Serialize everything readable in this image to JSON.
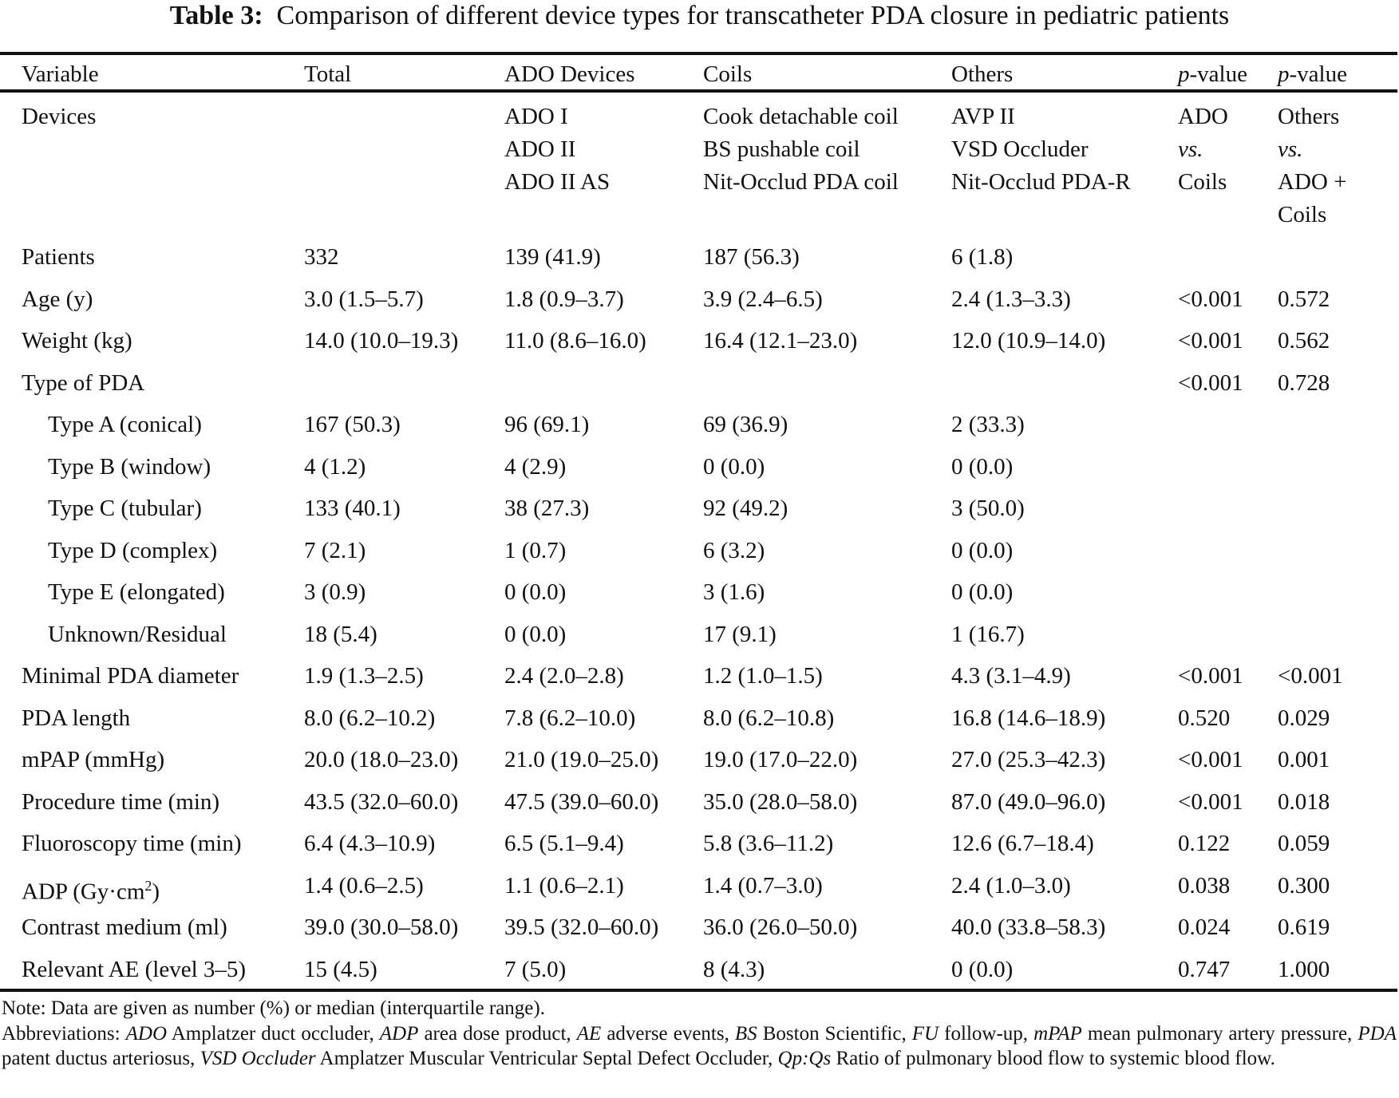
{
  "title": {
    "label": "Table 3:",
    "text": "Comparison of different device types for transcatheter PDA closure in pediatric patients"
  },
  "columns": [
    {
      "text": "Variable"
    },
    {
      "text": "Total"
    },
    {
      "text": "ADO Devices"
    },
    {
      "text": "Coils"
    },
    {
      "text": "Others"
    },
    {
      "italic": "p",
      "text": "-value"
    },
    {
      "italic": "p",
      "text": "-value"
    }
  ],
  "devices_row": {
    "label": "Devices",
    "ado": [
      "ADO I",
      "ADO II",
      "ADO II AS"
    ],
    "coils": [
      "Cook detachable coil",
      "BS pushable coil",
      "Nit-Occlud PDA coil"
    ],
    "others": [
      "AVP II",
      "VSD Occluder",
      "Nit-Occlud PDA-R"
    ],
    "p1": [
      "ADO",
      "vs.",
      "Coils"
    ],
    "p2": [
      "Others",
      "vs.",
      "ADO +",
      "Coils"
    ]
  },
  "rows": [
    {
      "variable": "Patients",
      "indent": false,
      "cells": [
        "332",
        "139 (41.9)",
        "187 (56.3)",
        "6 (1.8)",
        "",
        ""
      ]
    },
    {
      "variable": "Age (y)",
      "indent": false,
      "cells": [
        "3.0 (1.5–5.7)",
        "1.8 (0.9–3.7)",
        "3.9 (2.4–6.5)",
        "2.4 (1.3–3.3)",
        "<0.001",
        "0.572"
      ]
    },
    {
      "variable": "Weight (kg)",
      "indent": false,
      "cells": [
        "14.0 (10.0–19.3)",
        "11.0 (8.6–16.0)",
        "16.4 (12.1–23.0)",
        "12.0 (10.9–14.0)",
        "<0.001",
        "0.562"
      ]
    },
    {
      "variable": "Type of PDA",
      "indent": false,
      "cells": [
        "",
        "",
        "",
        "",
        "<0.001",
        "0.728"
      ]
    },
    {
      "variable": "Type A (conical)",
      "indent": true,
      "cells": [
        "167 (50.3)",
        "96 (69.1)",
        "69 (36.9)",
        "2 (33.3)",
        "",
        ""
      ]
    },
    {
      "variable": "Type B (window)",
      "indent": true,
      "cells": [
        "4 (1.2)",
        "4 (2.9)",
        "0 (0.0)",
        "0 (0.0)",
        "",
        ""
      ]
    },
    {
      "variable": "Type C (tubular)",
      "indent": true,
      "cells": [
        "133 (40.1)",
        "38 (27.3)",
        "92 (49.2)",
        "3 (50.0)",
        "",
        ""
      ]
    },
    {
      "variable": "Type D (complex)",
      "indent": true,
      "cells": [
        "7 (2.1)",
        "1 (0.7)",
        "6 (3.2)",
        "0 (0.0)",
        "",
        ""
      ]
    },
    {
      "variable": "Type E (elongated)",
      "indent": true,
      "cells": [
        "3 (0.9)",
        "0 (0.0)",
        "3 (1.6)",
        "0 (0.0)",
        "",
        ""
      ]
    },
    {
      "variable": "Unknown/Residual",
      "indent": true,
      "cells": [
        "18 (5.4)",
        "0 (0.0)",
        "17 (9.1)",
        "1 (16.7)",
        "",
        ""
      ]
    },
    {
      "variable": "Minimal PDA diameter",
      "indent": false,
      "cells": [
        "1.9 (1.3–2.5)",
        "2.4 (2.0–2.8)",
        "1.2 (1.0–1.5)",
        "4.3 (3.1–4.9)",
        "<0.001",
        "<0.001"
      ]
    },
    {
      "variable": "PDA length",
      "indent": false,
      "cells": [
        "8.0 (6.2–10.2)",
        "7.8 (6.2–10.0)",
        "8.0 (6.2–10.8)",
        "16.8 (14.6–18.9)",
        "0.520",
        "0.029"
      ]
    },
    {
      "variable": "mPAP (mmHg)",
      "indent": false,
      "cells": [
        "20.0 (18.0–23.0)",
        "21.0 (19.0–25.0)",
        "19.0 (17.0–22.0)",
        "27.0 (25.3–42.3)",
        "<0.001",
        "0.001"
      ]
    },
    {
      "variable": "Procedure time (min)",
      "indent": false,
      "cells": [
        "43.5 (32.0–60.0)",
        "47.5 (39.0–60.0)",
        "35.0 (28.0–58.0)",
        "87.0 (49.0–96.0)",
        "<0.001",
        "0.018"
      ]
    },
    {
      "variable": "Fluoroscopy time (min)",
      "indent": false,
      "cells": [
        "6.4 (4.3–10.9)",
        "6.5 (5.1–9.4)",
        "5.8 (3.6–11.2)",
        "12.6 (6.7–18.4)",
        "0.122",
        "0.059"
      ]
    },
    {
      "variable": "ADP (Gy·cm",
      "sup": "2",
      "variable_end": ")",
      "indent": false,
      "cells": [
        "1.4 (0.6–2.5)",
        "1.1 (0.6–2.1)",
        "1.4 (0.7–3.0)",
        "2.4 (1.0–3.0)",
        "0.038",
        "0.300"
      ]
    },
    {
      "variable": "Contrast medium (ml)",
      "indent": false,
      "cells": [
        "39.0 (30.0–58.0)",
        "39.5 (32.0–60.0)",
        "36.0 (26.0–50.0)",
        "40.0 (33.8–58.3)",
        "0.024",
        "0.619"
      ]
    },
    {
      "variable": "Relevant AE (level 3–5)",
      "indent": false,
      "cells": [
        "15 (4.5)",
        "7 (5.0)",
        "8 (4.3)",
        "0 (0.0)",
        "0.747",
        "1.000"
      ]
    }
  ],
  "note": "Note: Data are given as number (%) or median (interquartile range).",
  "abbreviations": [
    {
      "t": "Abbreviations: "
    },
    {
      "t": "ADO",
      "i": true
    },
    {
      "t": " Amplatzer duct occluder, "
    },
    {
      "t": "ADP",
      "i": true
    },
    {
      "t": " area dose product, "
    },
    {
      "t": "AE",
      "i": true
    },
    {
      "t": " adverse events, "
    },
    {
      "t": "BS",
      "i": true
    },
    {
      "t": " Boston Scientific, "
    },
    {
      "t": "FU",
      "i": true
    },
    {
      "t": " follow-up, "
    },
    {
      "t": "mPAP",
      "i": true
    },
    {
      "t": " mean pulmonary artery pressure, "
    },
    {
      "t": "PDA",
      "i": true
    },
    {
      "t": " patent ductus arteriosus, "
    },
    {
      "t": "VSD Occluder",
      "i": true
    },
    {
      "t": " Amplatzer Muscular Ventricular Septal Defect Occluder, "
    },
    {
      "t": "Qp:Qs",
      "i": true
    },
    {
      "t": " Ratio of pulmonary blood flow to systemic blood flow."
    }
  ]
}
